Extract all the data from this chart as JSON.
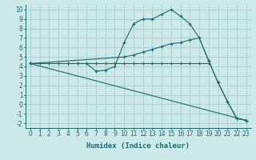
{
  "xlabel": "Humidex (Indice chaleur)",
  "background_color": "#cce8e8",
  "grid_color": "#aacccc",
  "line_color": "#1a6b6b",
  "xlim": [
    -0.5,
    23.5
  ],
  "ylim": [
    -2.5,
    10.5
  ],
  "xticks": [
    0,
    1,
    2,
    3,
    4,
    5,
    6,
    7,
    8,
    9,
    10,
    11,
    12,
    13,
    14,
    15,
    16,
    17,
    18,
    19,
    20,
    21,
    22,
    23
  ],
  "yticks": [
    -2,
    -1,
    0,
    1,
    2,
    3,
    4,
    5,
    6,
    7,
    8,
    9,
    10
  ],
  "line1_x": [
    0,
    1,
    2,
    3,
    4,
    5,
    6,
    7,
    8,
    9,
    10,
    11,
    12,
    13,
    14,
    15,
    16,
    17,
    18,
    19
  ],
  "line1_y": [
    4.3,
    4.3,
    4.3,
    4.3,
    4.3,
    4.3,
    4.3,
    4.3,
    4.3,
    4.3,
    4.3,
    4.3,
    4.3,
    4.3,
    4.3,
    4.3,
    4.3,
    4.3,
    4.3,
    4.3
  ],
  "line2_x": [
    0,
    4,
    5,
    6,
    7,
    8,
    9,
    10,
    11,
    12,
    13,
    14,
    15,
    16,
    17,
    18,
    19,
    20,
    21,
    22,
    23
  ],
  "line2_y": [
    4.3,
    4.3,
    4.3,
    4.3,
    3.5,
    3.6,
    4.0,
    6.5,
    8.5,
    9.0,
    9.0,
    9.5,
    10.0,
    9.3,
    8.5,
    7.0,
    4.6,
    2.3,
    0.3,
    -1.5,
    -1.7
  ],
  "line3_x": [
    0,
    10,
    11,
    12,
    13,
    14,
    15,
    16,
    17,
    18,
    19,
    20,
    21,
    22,
    23
  ],
  "line3_y": [
    4.3,
    5.0,
    5.2,
    5.5,
    5.8,
    6.1,
    6.4,
    6.5,
    6.8,
    7.0,
    4.6,
    2.3,
    0.3,
    -1.5,
    -1.7
  ],
  "line4_x": [
    0,
    23
  ],
  "line4_y": [
    4.3,
    -1.7
  ]
}
